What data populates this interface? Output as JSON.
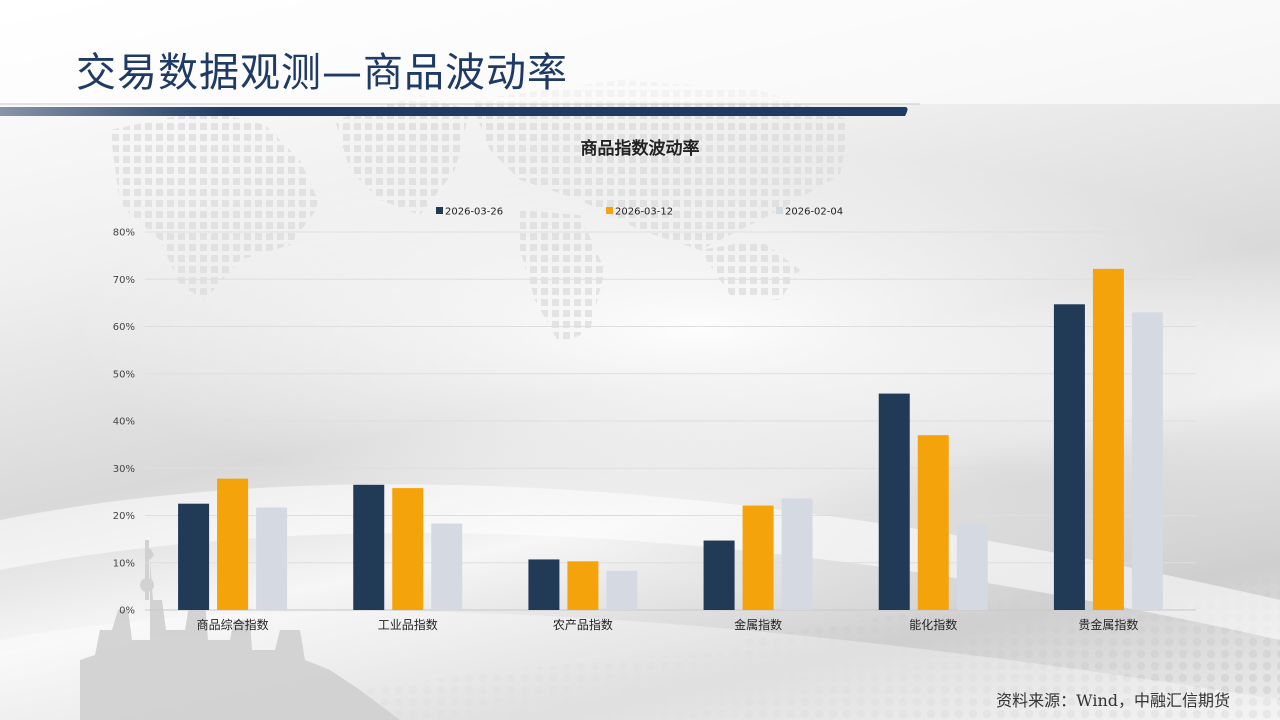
{
  "slide": {
    "title": "交易数据观测—商品波动率",
    "source": "资料来源：Wind，中融汇信期货"
  },
  "colors": {
    "title": "#1f3a64",
    "banner": "#1f3a64"
  },
  "chart_data": {
    "type": "bar",
    "title": "商品指数波动率",
    "xlabel": "",
    "ylabel": "",
    "categories": [
      "商品综合指数",
      "工业品指数",
      "农产品指数",
      "金属指数",
      "能化指数",
      "贵金属指数"
    ],
    "series": [
      {
        "name": "2026-03-26",
        "color": "#213a56",
        "values": [
          0.225,
          0.265,
          0.107,
          0.147,
          0.458,
          0.647
        ]
      },
      {
        "name": "2026-03-12",
        "color": "#f5a30b",
        "values": [
          0.278,
          0.258,
          0.103,
          0.221,
          0.37,
          0.722
        ]
      },
      {
        "name": "2026-02-04",
        "color": "#d5dae2",
        "values": [
          0.217,
          0.183,
          0.083,
          0.236,
          0.183,
          0.63
        ]
      }
    ],
    "ylim": [
      0,
      0.8
    ],
    "yticks": [
      "0%",
      "10%",
      "20%",
      "30%",
      "40%",
      "50%",
      "60%",
      "70%",
      "80%"
    ],
    "grid": true,
    "legend_position": "top"
  }
}
